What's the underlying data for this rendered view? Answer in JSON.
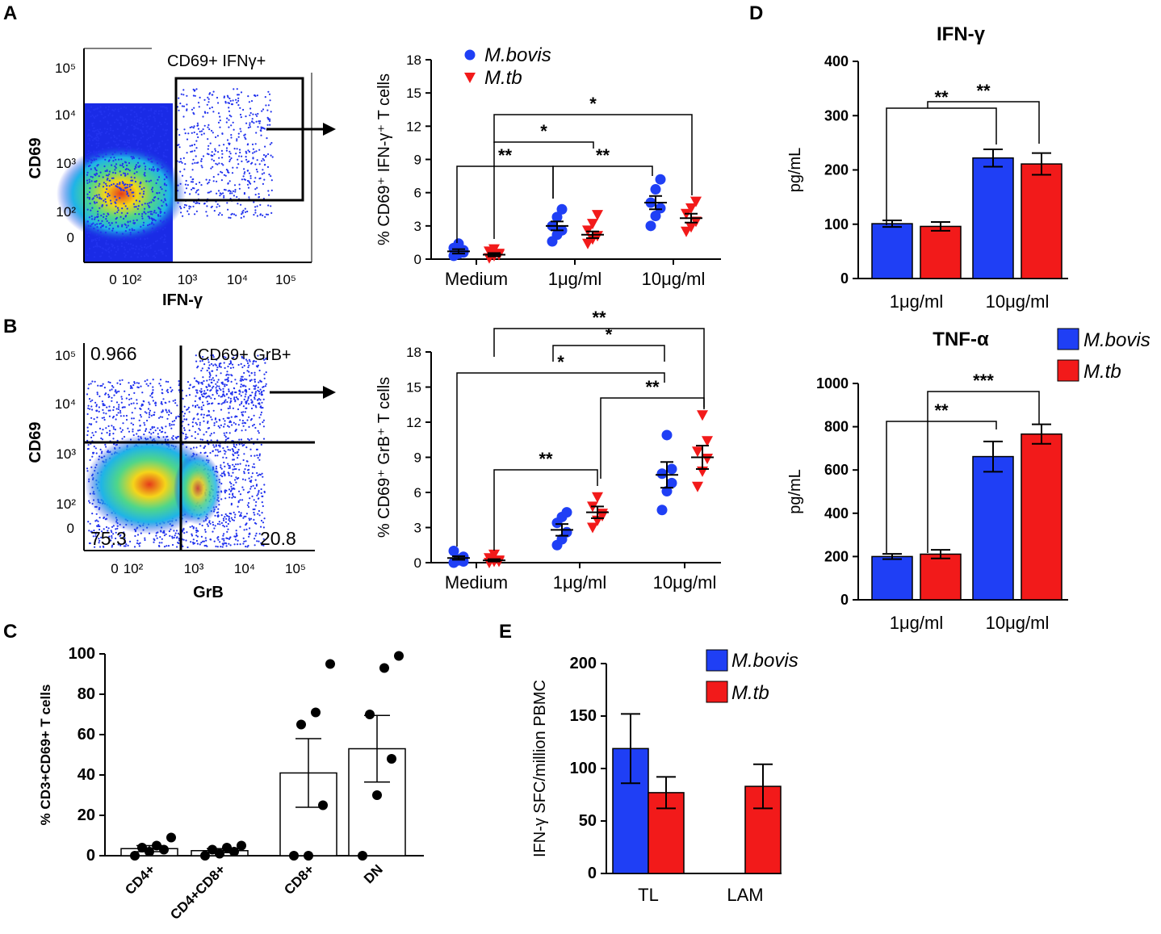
{
  "panels": {
    "A": "A",
    "B": "B",
    "C": "C",
    "D": "D",
    "E": "E"
  },
  "colors": {
    "bovis": "#1f3ff5",
    "tb": "#f21a1a",
    "black": "#000000"
  },
  "flow": {
    "A": {
      "gate_label": "CD69+ IFNγ+",
      "x_label": "IFN-γ",
      "y_label": "CD69",
      "y_ticks": [
        "10⁵",
        "10⁴",
        "10³",
        "10²",
        "0"
      ],
      "x_ticks": [
        "0",
        "10²",
        "10³",
        "10⁴",
        "10⁵"
      ]
    },
    "B": {
      "gate_label": "CD69+ GrB+",
      "x_label": "GrB",
      "y_label": "CD69",
      "q_upper_left": "0.966",
      "q_lower_left": "75.3",
      "q_lower_right": "20.8",
      "y_ticks": [
        "10⁵",
        "10⁴",
        "10³",
        "10²",
        "0"
      ],
      "x_ticks": [
        "0",
        "10²",
        "10³",
        "10⁴",
        "10⁵"
      ]
    }
  },
  "chart_data": [
    {
      "id": "A-scatter",
      "type": "scatter",
      "ylabel": "% CD69⁺ IFN-γ⁺ T cells",
      "ylim": [
        0,
        18
      ],
      "yticks": [
        0,
        3,
        6,
        9,
        12,
        15,
        18
      ],
      "categories": [
        "Medium",
        "1μg/ml",
        "10μg/ml"
      ],
      "legend": [
        "M.bovis",
        "M.tb"
      ],
      "series": [
        {
          "name": "M.bovis",
          "marker": "circle",
          "points": [
            [
              0.3,
              0.5,
              0.8,
              1.0,
              1.4,
              0.6
            ],
            [
              1.6,
              2.2,
              2.6,
              3.0,
              3.8,
              4.5
            ],
            [
              3.0,
              3.9,
              4.6,
              5.1,
              6.3,
              7.2
            ]
          ],
          "means": [
            0.7,
            3.0,
            5.1
          ],
          "sems": [
            0.2,
            0.4,
            0.6
          ]
        },
        {
          "name": "M.tb",
          "marker": "triangle",
          "points": [
            [
              0.1,
              0.3,
              0.5,
              0.7,
              0.9,
              0.4
            ],
            [
              1.4,
              1.8,
              2.1,
              2.6,
              3.2,
              4.0
            ],
            [
              2.5,
              2.9,
              3.4,
              4.1,
              4.6,
              5.2
            ]
          ],
          "means": [
            0.4,
            2.2,
            3.7
          ],
          "sems": [
            0.15,
            0.3,
            0.4
          ]
        }
      ],
      "significance": [
        "**",
        "*",
        "**",
        "*"
      ]
    },
    {
      "id": "B-scatter",
      "type": "scatter",
      "ylabel": "% CD69⁺ GrB⁺ T cells",
      "ylim": [
        0,
        18
      ],
      "yticks": [
        0,
        3,
        6,
        9,
        12,
        15,
        18
      ],
      "categories": [
        "Medium",
        "1μg/ml",
        "10μg/ml"
      ],
      "series": [
        {
          "name": "M.bovis",
          "marker": "circle",
          "points": [
            [
              0.0,
              0.2,
              0.5,
              1.0,
              0.3,
              0.1
            ],
            [
              1.5,
              2.0,
              2.6,
              3.4,
              3.9,
              4.3
            ],
            [
              4.5,
              6.1,
              6.8,
              7.6,
              10.9,
              8.0
            ]
          ],
          "means": [
            0.4,
            2.8,
            7.5
          ],
          "sems": [
            0.15,
            0.5,
            1.1
          ]
        },
        {
          "name": "M.tb",
          "marker": "triangle",
          "points": [
            [
              0.0,
              0.1,
              0.2,
              0.4,
              0.7,
              0.1
            ],
            [
              3.0,
              3.6,
              4.2,
              4.8,
              5.6,
              4.0
            ],
            [
              6.5,
              7.8,
              8.9,
              9.5,
              12.6,
              10.4
            ]
          ],
          "means": [
            0.2,
            4.3,
            9.0
          ],
          "sems": [
            0.1,
            0.5,
            1.0
          ]
        }
      ],
      "significance": [
        "**",
        "*",
        "*",
        "**",
        "**"
      ]
    },
    {
      "id": "C-bar",
      "type": "bar",
      "ylabel": "% CD3+CD69+ T cells",
      "ylim": [
        0,
        100
      ],
      "yticks": [
        0,
        20,
        40,
        60,
        80,
        100
      ],
      "categories": [
        "CD4+",
        "CD4+CD8+",
        "CD8+",
        "DN"
      ],
      "values": [
        3.5,
        2.5,
        41,
        53
      ],
      "sems": [
        1.5,
        1.0,
        17,
        16.5
      ],
      "points": [
        [
          0,
          2,
          3,
          4,
          5,
          9
        ],
        [
          0,
          1,
          2,
          3,
          4,
          5
        ],
        [
          0,
          0,
          25,
          65,
          71,
          95
        ],
        [
          0,
          30,
          48,
          70,
          93,
          99
        ]
      ]
    },
    {
      "id": "D-ifn",
      "type": "bar",
      "title": "IFN-γ",
      "ylabel": "pg/mL",
      "ylim": [
        0,
        400
      ],
      "yticks": [
        0,
        100,
        200,
        300,
        400
      ],
      "categories": [
        "1μg/ml",
        "10μg/ml"
      ],
      "series": [
        {
          "name": "M.bovis",
          "values": [
            101,
            222
          ],
          "sems": [
            6,
            16
          ]
        },
        {
          "name": "M.tb",
          "values": [
            96,
            211
          ],
          "sems": [
            8,
            20
          ]
        }
      ],
      "significance": [
        "**",
        "**"
      ]
    },
    {
      "id": "D-tnf",
      "type": "bar",
      "title": "TNF-α",
      "ylabel": "pg/mL",
      "ylim": [
        0,
        1000
      ],
      "yticks": [
        0,
        200,
        400,
        600,
        800,
        1000
      ],
      "categories": [
        "1μg/ml",
        "10μg/ml"
      ],
      "legend": [
        "M.bovis",
        "M.tb"
      ],
      "series": [
        {
          "name": "M.bovis",
          "values": [
            200,
            662
          ],
          "sems": [
            12,
            70
          ]
        },
        {
          "name": "M.tb",
          "values": [
            211,
            766
          ],
          "sems": [
            20,
            45
          ]
        }
      ],
      "significance": [
        "**",
        "***"
      ]
    },
    {
      "id": "E-bar",
      "type": "bar",
      "ylabel": "IFN-γ SFC/million PBMC",
      "ylim": [
        0,
        200
      ],
      "yticks": [
        0,
        50,
        100,
        150,
        200
      ],
      "categories": [
        "TL",
        "LAM"
      ],
      "legend": [
        "M.bovis",
        "M.tb"
      ],
      "series": [
        {
          "name": "M.bovis",
          "values": [
            119,
            0
          ],
          "sems": [
            33,
            0
          ]
        },
        {
          "name": "M.tb",
          "values": [
            77,
            83
          ],
          "sems": [
            15,
            21
          ]
        }
      ]
    }
  ]
}
